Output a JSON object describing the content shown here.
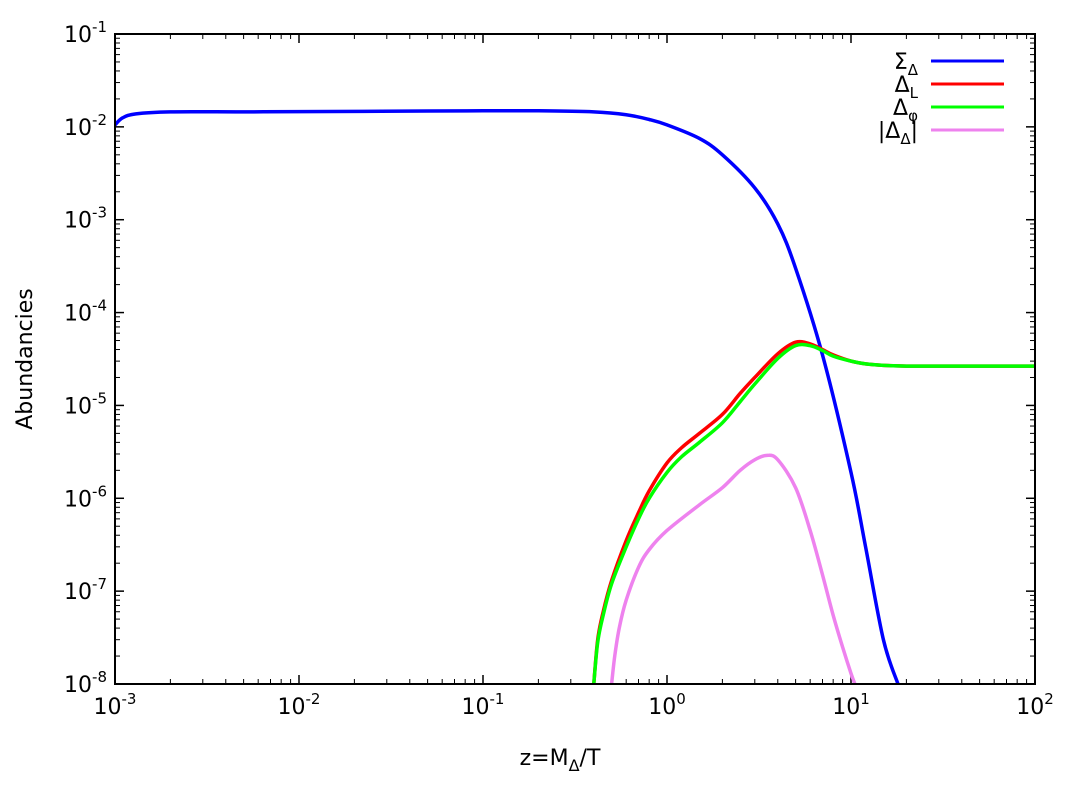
{
  "chart_data": {
    "type": "line",
    "xlabel": "z=MΔ/T",
    "xlabel_parts": {
      "base": "z=M",
      "sub": "Δ",
      "tail": "/T"
    },
    "ylabel": "Abundancies",
    "xscale": "log",
    "yscale": "log",
    "xlim": [
      0.001,
      100
    ],
    "ylim": [
      1e-08,
      0.1
    ],
    "grid": false,
    "legend_position": "top-right",
    "x_ticks": [
      {
        "base": "10",
        "exp": "-3"
      },
      {
        "base": "10",
        "exp": "-2"
      },
      {
        "base": "10",
        "exp": "-1"
      },
      {
        "base": "10",
        "exp": "0"
      },
      {
        "base": "10",
        "exp": "1"
      },
      {
        "base": "10",
        "exp": "2"
      }
    ],
    "y_ticks": [
      {
        "base": "10",
        "exp": "-8"
      },
      {
        "base": "10",
        "exp": "-7"
      },
      {
        "base": "10",
        "exp": "-6"
      },
      {
        "base": "10",
        "exp": "-5"
      },
      {
        "base": "10",
        "exp": "-4"
      },
      {
        "base": "10",
        "exp": "-3"
      },
      {
        "base": "10",
        "exp": "-2"
      },
      {
        "base": "10",
        "exp": "-1"
      }
    ],
    "series": [
      {
        "name": "ΣΔ",
        "label_main": "Σ",
        "label_sub": "Δ",
        "color": "#0000ff",
        "x": [
          0.001,
          0.0011,
          0.0013,
          0.002,
          0.005,
          0.01,
          0.05,
          0.1,
          0.2,
          0.4,
          0.6,
          0.8,
          1.0,
          1.5,
          2.0,
          3.0,
          4.0,
          5.0,
          7.0,
          10.0,
          12.0,
          15.0,
          18.0
        ],
        "y": [
          0.0105,
          0.0125,
          0.0138,
          0.0145,
          0.0145,
          0.0146,
          0.0148,
          0.0149,
          0.0149,
          0.0145,
          0.0135,
          0.012,
          0.0105,
          0.0075,
          0.005,
          0.0022,
          0.0009,
          0.0003,
          3.5e-05,
          1.9e-06,
          3e-07,
          3e-08,
          1e-08
        ]
      },
      {
        "name": "ΔL",
        "label_main": "Δ",
        "label_sub": "L",
        "color": "#ff0000",
        "x": [
          0.4,
          0.42,
          0.45,
          0.5,
          0.6,
          0.7,
          0.8,
          1.0,
          1.2,
          1.5,
          2.0,
          2.5,
          3.0,
          4.0,
          5.0,
          6.0,
          7.0,
          8.0,
          10.0,
          12.0,
          15.0,
          20.0,
          30.0,
          50.0,
          100.0
        ],
        "y": [
          1e-08,
          3e-08,
          6e-08,
          1.3e-07,
          3.5e-07,
          7e-07,
          1.2e-06,
          2.4e-06,
          3.5e-06,
          5e-06,
          8e-06,
          1.35e-05,
          2e-05,
          3.6e-05,
          4.8e-05,
          4.6e-05,
          4e-05,
          3.5e-05,
          3e-05,
          2.8e-05,
          2.7e-05,
          2.65e-05,
          2.65e-05,
          2.65e-05,
          2.65e-05
        ]
      },
      {
        "name": "Δφ",
        "label_main": "Δ",
        "label_sub": "φ",
        "color": "#00ff00",
        "x": [
          0.4,
          0.42,
          0.45,
          0.5,
          0.6,
          0.7,
          0.8,
          1.0,
          1.2,
          1.5,
          2.0,
          2.5,
          3.0,
          4.0,
          5.0,
          6.0,
          7.0,
          8.0,
          10.0,
          12.0,
          15.0,
          20.0,
          30.0,
          50.0,
          100.0
        ],
        "y": [
          1e-08,
          2.8e-08,
          5.5e-08,
          1.2e-07,
          3e-07,
          6e-07,
          1e-06,
          1.9e-06,
          2.8e-06,
          4e-06,
          6.5e-06,
          1.1e-05,
          1.7e-05,
          3.2e-05,
          4.4e-05,
          4.4e-05,
          3.9e-05,
          3.4e-05,
          3e-05,
          2.8e-05,
          2.7e-05,
          2.65e-05,
          2.65e-05,
          2.65e-05,
          2.65e-05
        ]
      },
      {
        "name": "|ΔΔ|",
        "label_main": "|Δ",
        "label_sub": "Δ",
        "label_tail": "|",
        "color": "#ee82ee",
        "x": [
          0.5,
          0.52,
          0.55,
          0.6,
          0.7,
          0.8,
          1.0,
          1.5,
          2.0,
          2.5,
          3.0,
          3.5,
          4.0,
          5.0,
          6.0,
          7.0,
          8.0,
          9.0,
          10.0,
          10.5
        ],
        "y": [
          1e-08,
          2e-08,
          4e-08,
          8e-08,
          1.8e-07,
          2.8e-07,
          4.5e-07,
          8.5e-07,
          1.3e-06,
          2e-06,
          2.6e-06,
          2.9e-06,
          2.6e-06,
          1.3e-06,
          4.5e-07,
          1.5e-07,
          5.5e-08,
          2.5e-08,
          1.3e-08,
          1e-08
        ]
      }
    ]
  }
}
